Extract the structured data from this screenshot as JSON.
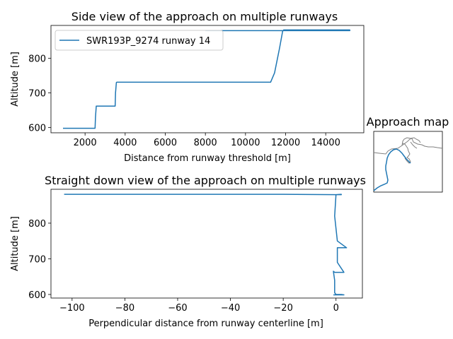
{
  "colors": {
    "series": "#1f77b4",
    "coast": "#808080"
  },
  "chart_data": [
    {
      "type": "line",
      "title": "Side view of the approach on multiple runways",
      "xlabel": "Distance from runway threshold [m]",
      "ylabel": "Altitude [m]",
      "xlim": [
        300,
        15900
      ],
      "ylim": [
        585,
        895
      ],
      "xticks": [
        2000,
        4000,
        6000,
        8000,
        10000,
        12000,
        14000
      ],
      "yticks": [
        600,
        700,
        800
      ],
      "legend_position": "top-left",
      "series": [
        {
          "name": "SWR193P_9274 runway 14",
          "x": [
            900,
            2100,
            2500,
            2520,
            2560,
            3200,
            3500,
            3520,
            3560,
            3580,
            6000,
            9000,
            11250,
            11450,
            11700,
            11850,
            11900,
            12000,
            14000,
            15200,
            15200,
            12000,
            8000
          ],
          "y": [
            598,
            598,
            598,
            630,
            662,
            662,
            662,
            700,
            730,
            731,
            731,
            731,
            731,
            758,
            830,
            878,
            882,
            882,
            882,
            882,
            880,
            880,
            880
          ]
        }
      ]
    },
    {
      "type": "line",
      "title": "Straight down view of the approach on multiple runways",
      "xlabel": "Perpendicular distance from runway centerline [m]",
      "ylabel": "Altitude [m]",
      "xlim": [
        -108,
        10
      ],
      "ylim": [
        590,
        895
      ],
      "xticks": [
        -100,
        -80,
        -60,
        -40,
        -20,
        0
      ],
      "yticks": [
        600,
        700,
        800
      ],
      "series": [
        {
          "name": "SWR193P_9274 runway 14",
          "x": [
            -103,
            -20,
            0,
            2,
            2,
            0,
            -0.5,
            0.5,
            4,
            0.5,
            0.5,
            3,
            -0.5,
            -1,
            -0.5,
            -0.5,
            0,
            2,
            3,
            -1
          ],
          "y": [
            881,
            881,
            880,
            880,
            881,
            880,
            820,
            750,
            731,
            731,
            690,
            662,
            662,
            665,
            640,
            605,
            600,
            600,
            599,
            599
          ]
        }
      ]
    }
  ],
  "map": {
    "title": "Approach map"
  }
}
